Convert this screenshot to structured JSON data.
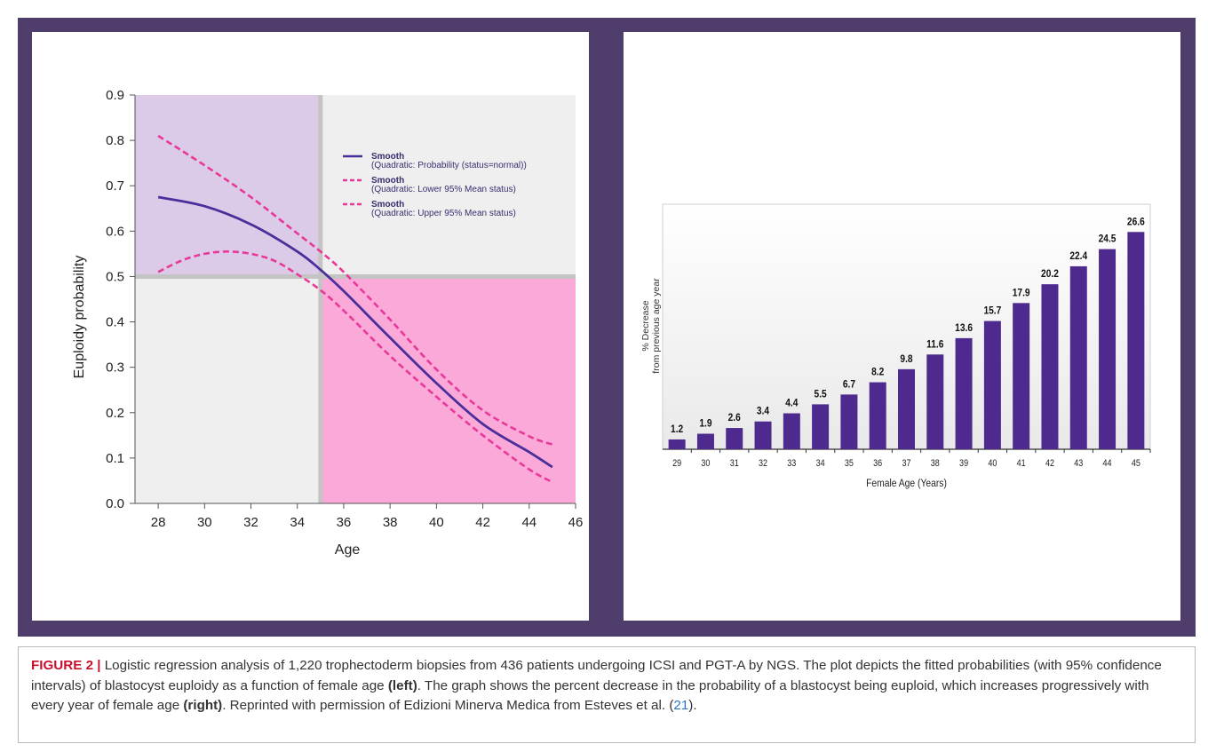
{
  "colors": {
    "frame": "#4f3d6b",
    "smooth_line": "#4a2f9b",
    "ci_line": "#e8399a",
    "region_top_left": "#dccbe8",
    "region_bottom_right": "#fba9d8",
    "region_neutral": "#efefef",
    "bar": "#4e2a8e",
    "caption_label": "#c8102e",
    "caption_link": "#2b76c9"
  },
  "chart_data": [
    {
      "type": "line",
      "title": "",
      "xlabel": "Age",
      "ylabel": "Euploidy probability",
      "xlim": [
        27,
        46
      ],
      "ylim": [
        0.0,
        0.9
      ],
      "x_ticks": [
        "28",
        "30",
        "32",
        "34",
        "36",
        "38",
        "40",
        "42",
        "44",
        "46"
      ],
      "y_ticks": [
        "0.0",
        "0.1",
        "0.2",
        "0.3",
        "0.4",
        "0.5",
        "0.6",
        "0.7",
        "0.8",
        "0.9"
      ],
      "grid": false,
      "reference_lines": {
        "x": 35,
        "y": 0.5
      },
      "legend_position": "top-right",
      "series": [
        {
          "name": "Smooth",
          "description": "(Quadratic: Probability (status=normal))",
          "style": "solid",
          "x": [
            28,
            30,
            32,
            34,
            35,
            36,
            38,
            40,
            42,
            44,
            45
          ],
          "values": [
            0.675,
            0.655,
            0.615,
            0.555,
            0.515,
            0.468,
            0.365,
            0.265,
            0.175,
            0.113,
            0.08
          ]
        },
        {
          "name": "Smooth",
          "description": "(Quadratic: Lower 95% Mean status)",
          "style": "dashed",
          "x": [
            28,
            29,
            30,
            31,
            32,
            33,
            34,
            35,
            36,
            38,
            40,
            42,
            44,
            45
          ],
          "values": [
            0.51,
            0.535,
            0.55,
            0.555,
            0.55,
            0.535,
            0.505,
            0.47,
            0.425,
            0.325,
            0.235,
            0.15,
            0.075,
            0.047
          ]
        },
        {
          "name": "Smooth",
          "description": "(Quadratic: Upper 95% Mean status)",
          "style": "dashed",
          "x": [
            28,
            30,
            32,
            34,
            35,
            36,
            38,
            40,
            42,
            44,
            45
          ],
          "values": [
            0.81,
            0.745,
            0.675,
            0.595,
            0.555,
            0.51,
            0.405,
            0.295,
            0.205,
            0.148,
            0.13
          ]
        }
      ]
    },
    {
      "type": "bar",
      "title": "",
      "xlabel": "Female Age (Years)",
      "ylabel": [
        "% Decrease",
        "from previous age year"
      ],
      "ylim": [
        0,
        30
      ],
      "grid": false,
      "categories": [
        "29",
        "30",
        "31",
        "32",
        "33",
        "34",
        "35",
        "36",
        "37",
        "38",
        "39",
        "40",
        "41",
        "42",
        "43",
        "44",
        "45"
      ],
      "values": [
        1.2,
        1.9,
        2.6,
        3.4,
        4.4,
        5.5,
        6.7,
        8.2,
        9.8,
        11.6,
        13.6,
        15.7,
        17.9,
        20.2,
        22.4,
        24.5,
        26.6
      ],
      "value_labels": [
        "1.2",
        "1.9",
        "2.6",
        "3.4",
        "4.4",
        "5.5",
        "6.7",
        "8.2",
        "9.8",
        "11.6",
        "13.6",
        "15.7",
        "17.9",
        "20.2",
        "22.4",
        "24.5",
        "26.6"
      ]
    }
  ],
  "caption": {
    "label": "FIGURE 2 |",
    "t1": " Logistic regression analysis of 1,220 trophectoderm biopsies from 436 patients undergoing ICSI and PGT-A by NGS. The plot depicts the fitted probabilities (with 95% confidence intervals) of blastocyst euploidy as a function of female age ",
    "b1": "(left)",
    "t2": ". The graph shows the percent decrease in the probability of a blastocyst being euploid, which increases progressively with every year of female age ",
    "b2": "(right)",
    "t3": ". Reprinted with permission of Edizioni Minerva Medica from Esteves et al. (",
    "ref": "21",
    "t4": ")."
  }
}
